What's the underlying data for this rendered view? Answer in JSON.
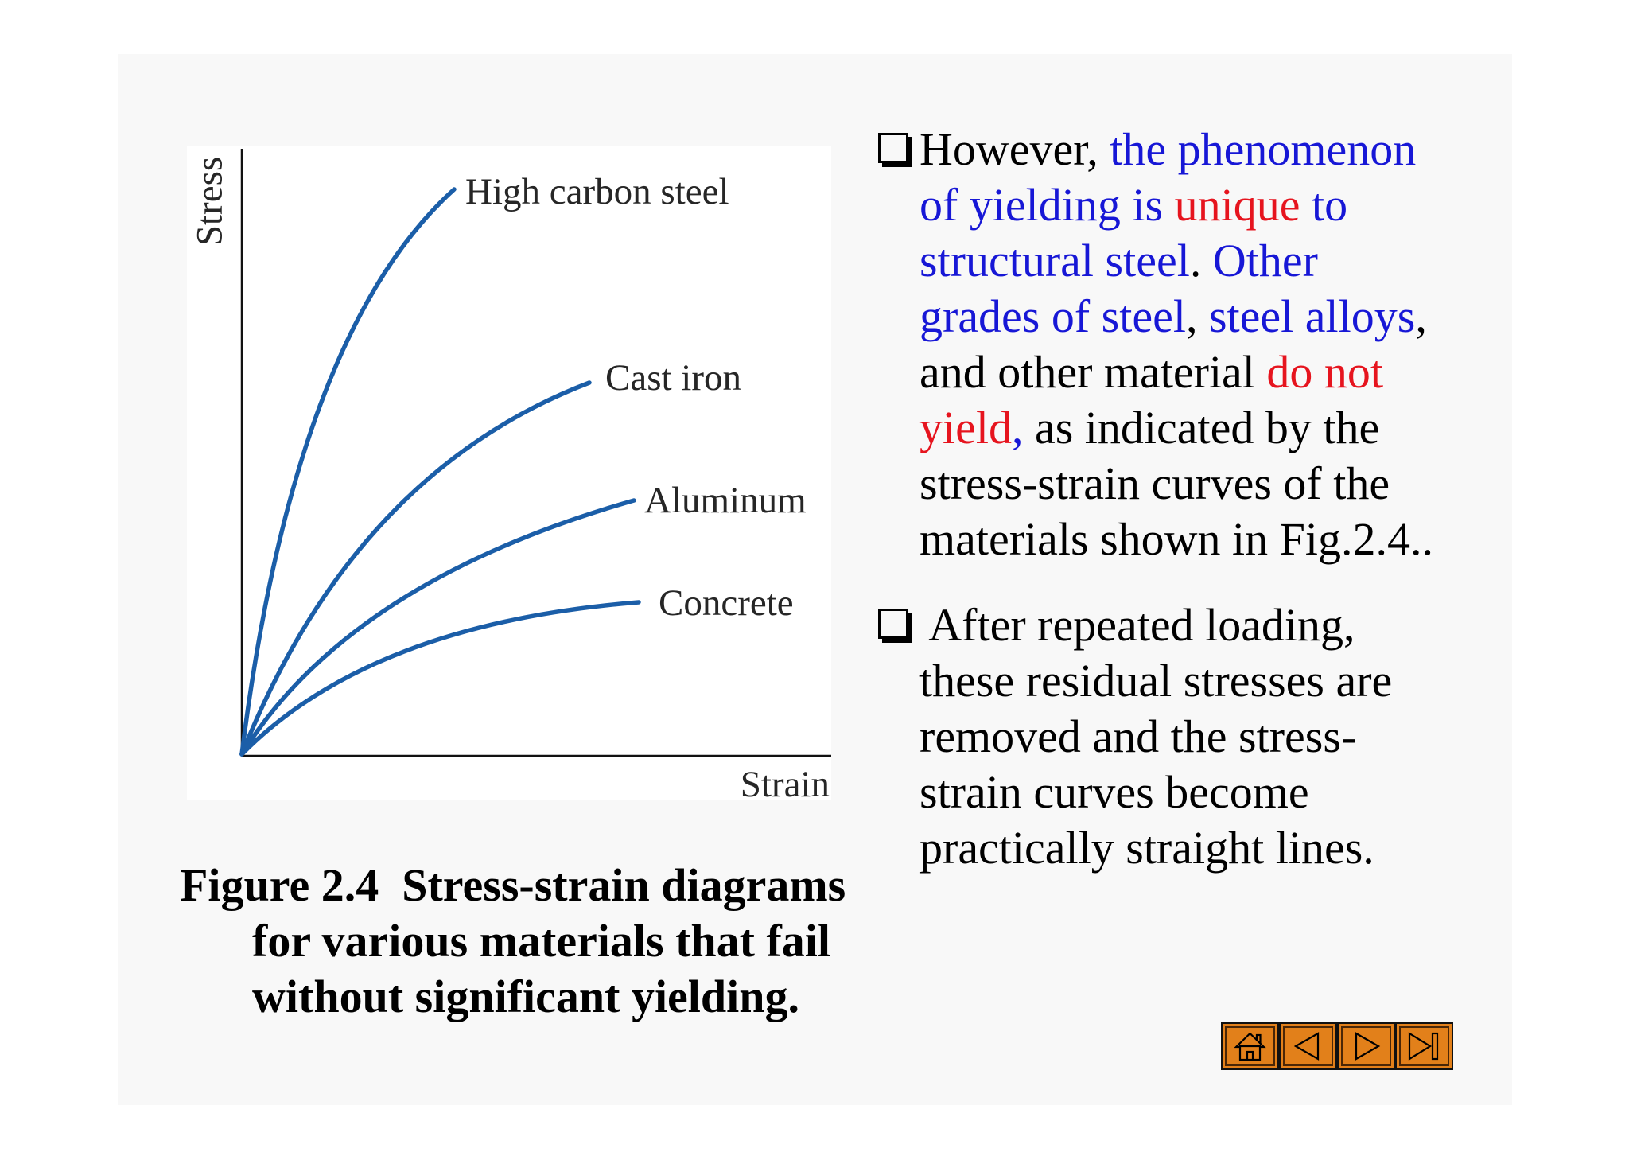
{
  "chart_data": {
    "type": "line",
    "xlabel": "Strain",
    "ylabel": "Stress",
    "grid": false,
    "line_color": "#1b5ea8",
    "series": [
      {
        "name": "High carbon steel"
      },
      {
        "name": "Cast iron"
      },
      {
        "name": "Aluminum"
      },
      {
        "name": "Concrete"
      }
    ]
  },
  "caption": {
    "lines": [
      "Figure 2.4  Stress-strain diagrams",
      "for various materials that fail",
      "without significant yielding."
    ]
  },
  "bullets": [
    {
      "icon": "checkbox-bullet-icon",
      "lines": [
        [
          {
            "text": "However, ",
            "color": "#000000"
          },
          {
            "text": "the phenomenon",
            "color": "#1717d6"
          }
        ],
        [
          {
            "text": "of yielding is ",
            "color": "#1717d6"
          },
          {
            "text": "unique",
            "color": "#e6141e"
          },
          {
            "text": " to",
            "color": "#1717d6"
          }
        ],
        [
          {
            "text": "structural steel",
            "color": "#1717d6"
          },
          {
            "text": ". ",
            "color": "#000000"
          },
          {
            "text": "Other",
            "color": "#1717d6"
          }
        ],
        [
          {
            "text": "grades of steel",
            "color": "#1717d6"
          },
          {
            "text": ", ",
            "color": "#000000"
          },
          {
            "text": "steel alloys",
            "color": "#1717d6"
          },
          {
            "text": ",",
            "color": "#000000"
          }
        ],
        [
          {
            "text": "and other material ",
            "color": "#000000"
          },
          {
            "text": "do not",
            "color": "#e6141e"
          }
        ],
        [
          {
            "text": "yield",
            "color": "#e6141e"
          },
          {
            "text": ",",
            "color": "#1717d6"
          },
          {
            "text": " as indicated by the",
            "color": "#000000"
          }
        ],
        [
          {
            "text": "stress-strain curves of the",
            "color": "#000000"
          }
        ],
        [
          {
            "text": "materials shown in Fig.2.4..",
            "color": "#000000"
          }
        ]
      ]
    },
    {
      "icon": "checkbox-bullet-icon",
      "lines": [
        [
          {
            "text": " After repeated loading,",
            "color": "#000000"
          }
        ],
        [
          {
            "text": "these residual stresses are",
            "color": "#000000"
          }
        ],
        [
          {
            "text": "removed and the stress-",
            "color": "#000000"
          }
        ],
        [
          {
            "text": "strain curves become",
            "color": "#000000"
          }
        ],
        [
          {
            "text": "practically straight lines.",
            "color": "#000000"
          }
        ]
      ]
    }
  ],
  "nav": {
    "button_color": "#e2801a",
    "buttons": [
      {
        "icon": "home-icon"
      },
      {
        "icon": "triangle-left-icon"
      },
      {
        "icon": "triangle-right-icon"
      },
      {
        "icon": "end-icon"
      }
    ]
  }
}
